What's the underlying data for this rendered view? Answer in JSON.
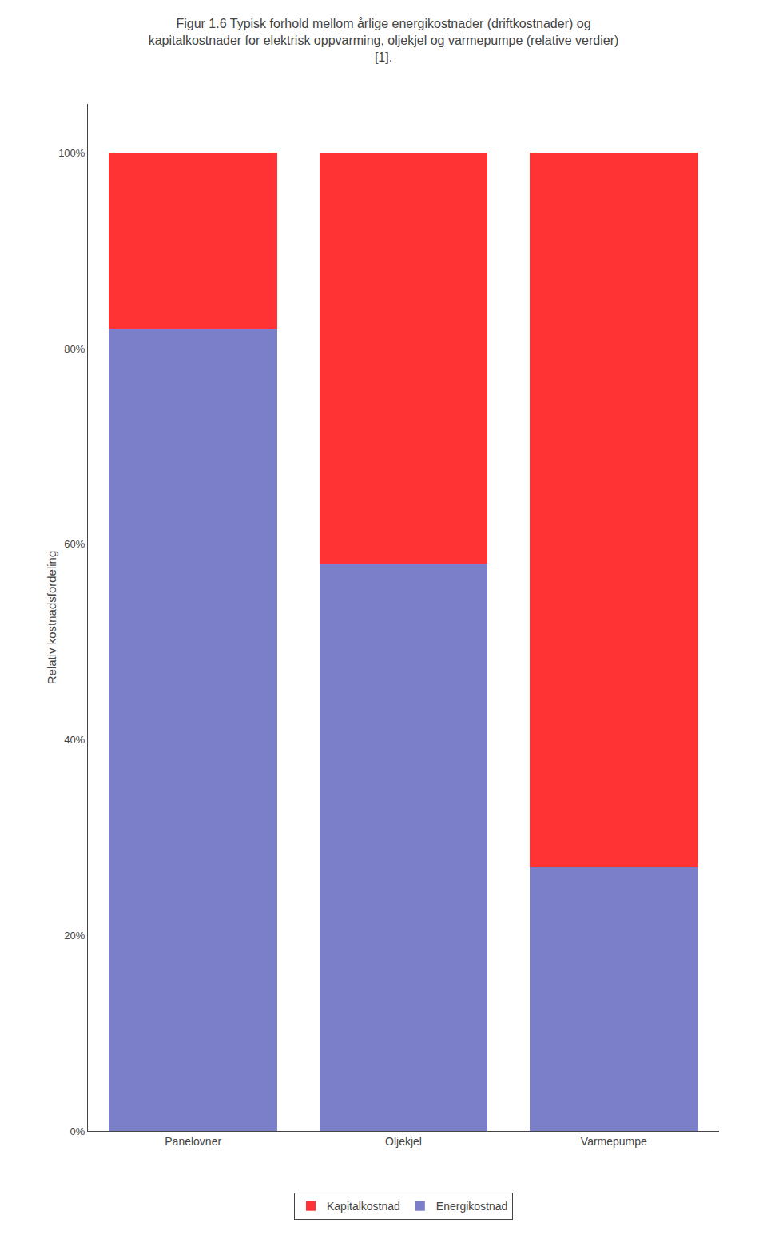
{
  "chart_data": {
    "type": "bar",
    "stacked": true,
    "title": "Figur 1.6 Typisk forhold mellom årlige energikostnader (driftkostnader) og kapitalkostnader for elektrisk oppvarming, oljekjel og varmepumpe (relative verdier) [1].",
    "ylabel": "Relativ kostnadsfordeling",
    "categories": [
      "Panelovner",
      "Oljekjel",
      "Varmepumpe"
    ],
    "series": [
      {
        "name": "Energikostnad",
        "color": "#7B7EC8",
        "values": [
          82,
          58,
          27
        ]
      },
      {
        "name": "Kapitalkostnad",
        "color": "#FF3333",
        "values": [
          18,
          42,
          73
        ]
      }
    ],
    "ylim": [
      0,
      105
    ],
    "yticks": [
      {
        "value": 0,
        "label": "0%"
      },
      {
        "value": 20,
        "label": "20%"
      },
      {
        "value": 40,
        "label": "40%"
      },
      {
        "value": 60,
        "label": "60%"
      },
      {
        "value": 80,
        "label": "80%"
      },
      {
        "value": 100,
        "label": "100%"
      }
    ],
    "grid": false,
    "legend": "bottom"
  }
}
